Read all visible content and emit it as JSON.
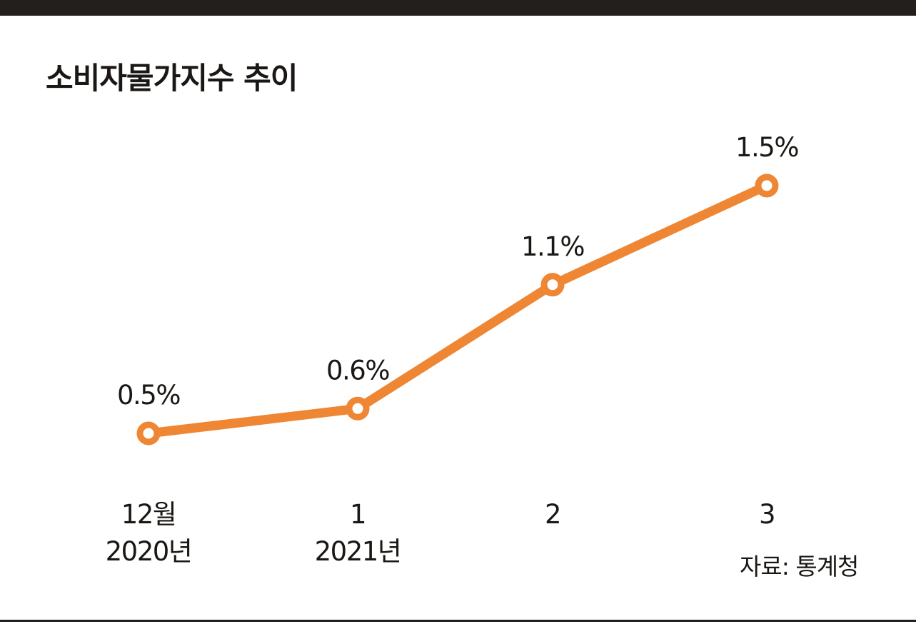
{
  "title": "소비자물가지수 추이",
  "source": "자료: 통계청",
  "colors": {
    "line": "#ee8633",
    "marker_fill": "#ffffff",
    "text": "#1a1714",
    "bar": "#231f1c"
  },
  "chart_data": {
    "type": "line",
    "title": "소비자물가지수 추이",
    "xlabel": "",
    "ylabel": "",
    "grid": false,
    "legend": "none",
    "categories": [
      [
        "12월",
        "2020년"
      ],
      [
        "1",
        "2021년"
      ],
      [
        "2"
      ],
      [
        "3"
      ]
    ],
    "values": [
      0.5,
      0.6,
      1.1,
      1.5
    ],
    "value_labels": [
      "0.5%",
      "0.6%",
      "1.1%",
      "1.5%"
    ],
    "unit": "%"
  }
}
